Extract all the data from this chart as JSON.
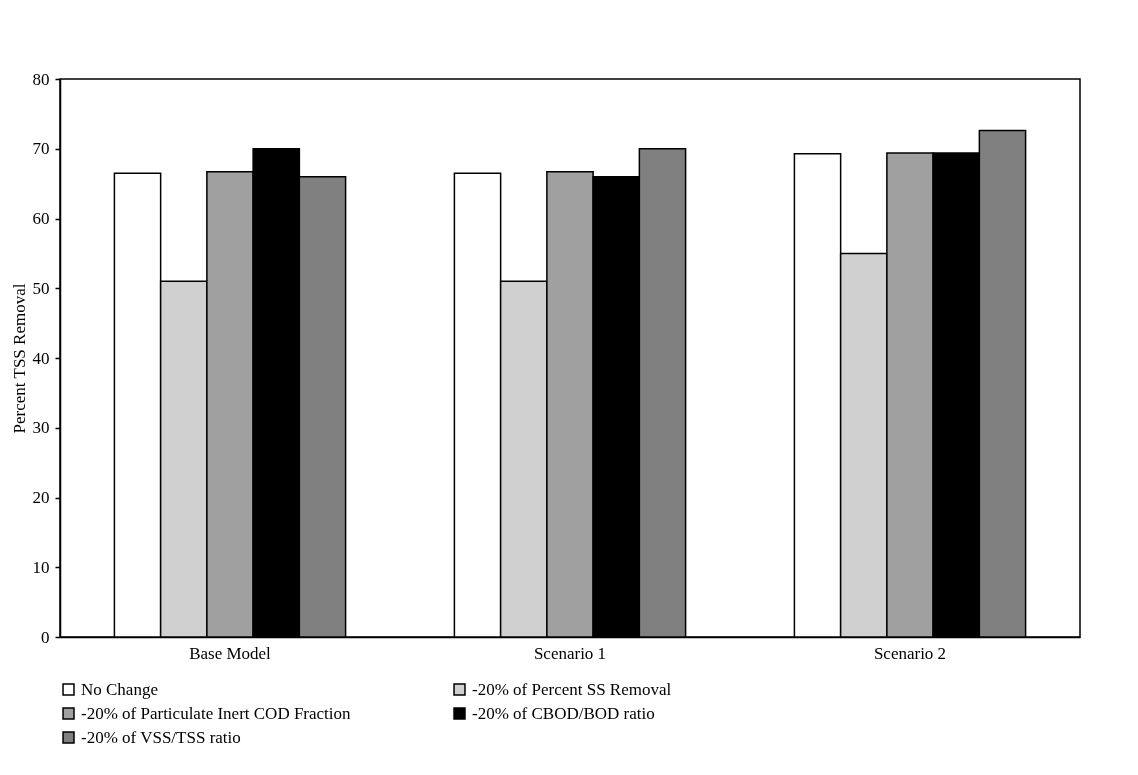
{
  "chart_data": {
    "type": "bar",
    "ylabel": "Percent TSS Removal",
    "categories": [
      "Base Model",
      "Scenario 1",
      "Scenario 2"
    ],
    "series": [
      {
        "name": "No Change",
        "color": "#ffffff",
        "values": [
          66.5,
          66.5,
          69.3
        ]
      },
      {
        "name": "-20% of Percent SS Removal",
        "color": "#d0d0d0",
        "values": [
          51,
          51,
          55
        ]
      },
      {
        "name": "-20% of Particulate Inert COD Fraction",
        "color": "#a0a0a0",
        "values": [
          66.7,
          66.7,
          69.4
        ]
      },
      {
        "name": "-20% of CBOD/BOD ratio",
        "color": "#000000",
        "values": [
          70,
          66,
          69.4
        ]
      },
      {
        "name": "-20% of VSS/TSS ratio",
        "color": "#808080",
        "values": [
          66,
          70,
          72.6
        ]
      }
    ],
    "ylim": [
      0,
      80
    ],
    "yticks": [
      0,
      10,
      20,
      30,
      40,
      50,
      60,
      70,
      80
    ],
    "grid": false,
    "legend": "bottom"
  }
}
